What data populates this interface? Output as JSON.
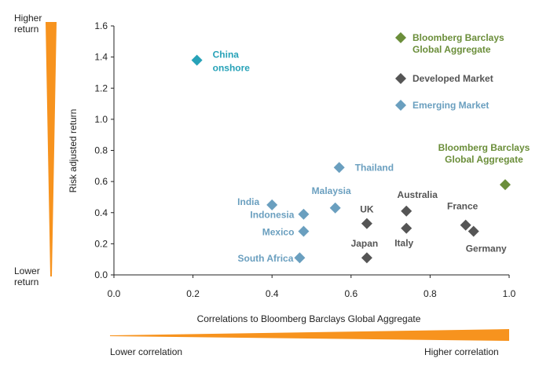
{
  "side_labels": {
    "higher_return": [
      "Higher",
      "return"
    ],
    "lower_return": [
      "Lower",
      "return"
    ],
    "lower_correlation": "Lower correlation",
    "higher_correlation": "Higher correlation"
  },
  "colors": {
    "china": "#27A2B8",
    "developed": "#555555",
    "emerging": "#6A9FBF",
    "benchmark": "#6B8E3A",
    "axis": "#222222",
    "ramp": "#F7931E"
  },
  "chart_data": {
    "type": "scatter",
    "xlabel": "Correlations to Bloomberg Barclays Global Aggregate",
    "ylabel": "Risk adjusted return",
    "xlim": [
      0.0,
      1.0
    ],
    "ylim": [
      0.0,
      1.6
    ],
    "xticks": [
      "0.0",
      "0.2",
      "0.4",
      "0.6",
      "0.8",
      "1.0"
    ],
    "yticks": [
      "0.0",
      "0.2",
      "0.4",
      "0.6",
      "0.8",
      "1.0",
      "1.2",
      "1.4",
      "1.6"
    ],
    "grid": false,
    "legend_position": "top-right",
    "legend": [
      {
        "label_lines": [
          "Bloomberg Barclays",
          "Global Aggregate"
        ],
        "group": "benchmark"
      },
      {
        "label_lines": [
          "Developed Market"
        ],
        "group": "developed"
      },
      {
        "label_lines": [
          "Emerging Market"
        ],
        "group": "emerging"
      }
    ],
    "points": [
      {
        "label_lines": [
          "China",
          "onshore"
        ],
        "x": 0.21,
        "y": 1.38,
        "group": "china"
      },
      {
        "label_lines": [
          "Thailand"
        ],
        "x": 0.57,
        "y": 0.69,
        "group": "emerging"
      },
      {
        "label_lines": [
          "India"
        ],
        "x": 0.4,
        "y": 0.45,
        "group": "emerging"
      },
      {
        "label_lines": [
          "Malaysia"
        ],
        "x": 0.56,
        "y": 0.43,
        "group": "emerging"
      },
      {
        "label_lines": [
          "Indonesia"
        ],
        "x": 0.48,
        "y": 0.39,
        "group": "emerging"
      },
      {
        "label_lines": [
          "Mexico"
        ],
        "x": 0.48,
        "y": 0.28,
        "group": "emerging"
      },
      {
        "label_lines": [
          "South Africa"
        ],
        "x": 0.47,
        "y": 0.11,
        "group": "emerging"
      },
      {
        "label_lines": [
          "UK"
        ],
        "x": 0.64,
        "y": 0.33,
        "group": "developed"
      },
      {
        "label_lines": [
          "Japan"
        ],
        "x": 0.64,
        "y": 0.11,
        "group": "developed"
      },
      {
        "label_lines": [
          "Australia"
        ],
        "x": 0.74,
        "y": 0.41,
        "group": "developed"
      },
      {
        "label_lines": [
          "Italy"
        ],
        "x": 0.74,
        "y": 0.3,
        "group": "developed"
      },
      {
        "label_lines": [
          "France"
        ],
        "x": 0.89,
        "y": 0.32,
        "group": "developed"
      },
      {
        "label_lines": [
          "Germany"
        ],
        "x": 0.91,
        "y": 0.28,
        "group": "developed"
      },
      {
        "label_lines": [
          "Bloomberg Barclays",
          "Global Aggregate"
        ],
        "x": 0.99,
        "y": 0.58,
        "group": "benchmark"
      }
    ]
  }
}
